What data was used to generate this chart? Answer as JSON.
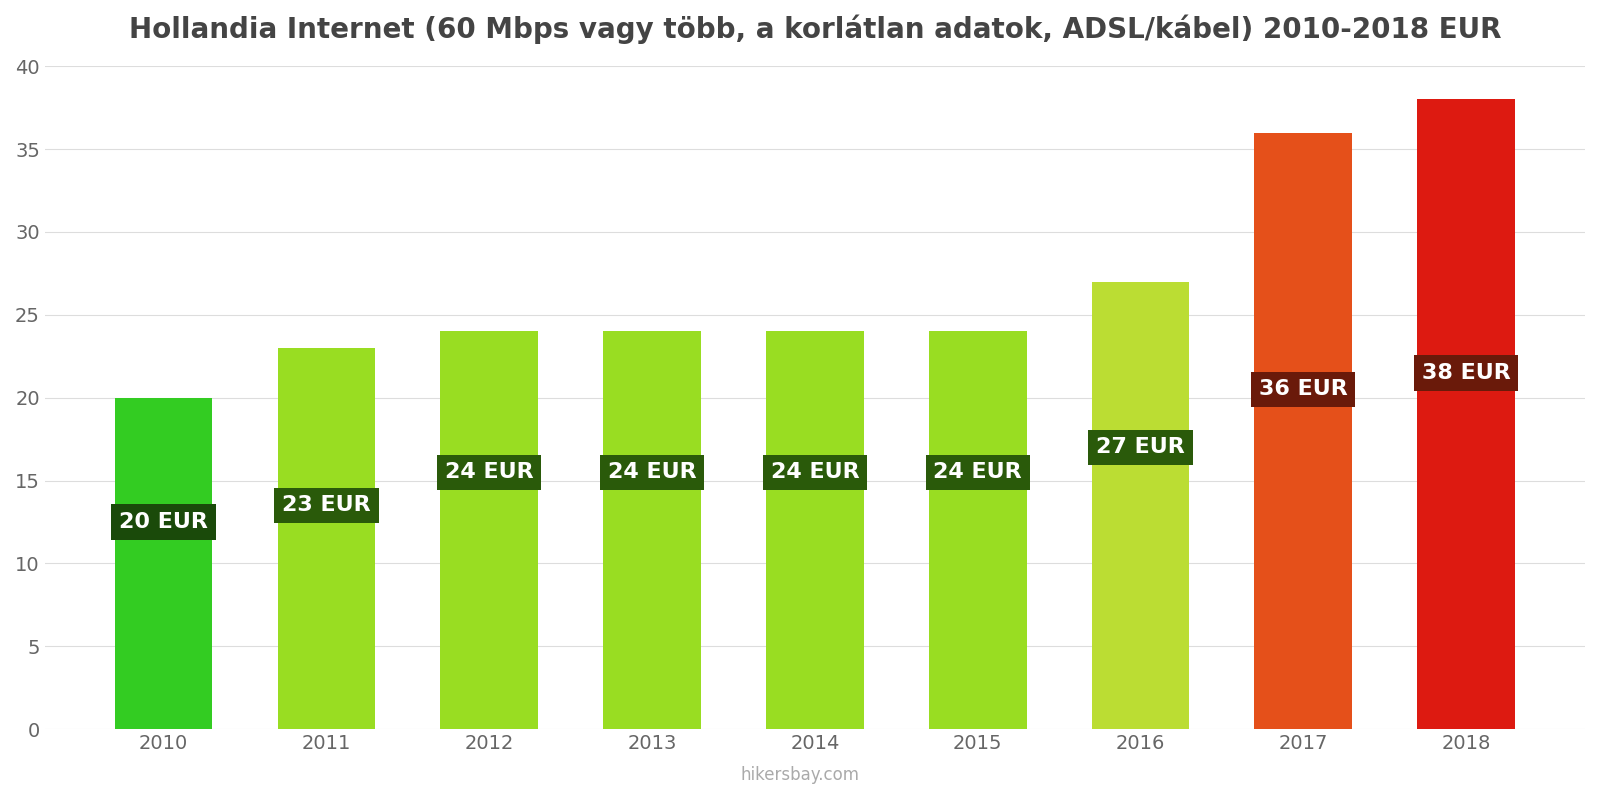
{
  "title": "Hollandia Internet (60 Mbps vagy több, a korlátlan adatok, ADSL/kábel) 2010-2018 EUR",
  "years": [
    2010,
    2011,
    2012,
    2013,
    2014,
    2015,
    2016,
    2017,
    2018
  ],
  "values": [
    20,
    23,
    24,
    24,
    24,
    24,
    27,
    36,
    38
  ],
  "bar_colors": [
    "#33cc22",
    "#99dd22",
    "#99dd22",
    "#99dd22",
    "#99dd22",
    "#99dd22",
    "#bbdd33",
    "#e5501a",
    "#dd1a11"
  ],
  "label_bg_colors": [
    "#1a4a0a",
    "#2a5a0a",
    "#2a5a0a",
    "#2a5a0a",
    "#2a5a0a",
    "#2a5a0a",
    "#2a5a0a",
    "#6a1a0a",
    "#6a1a0a"
  ],
  "labels": [
    "20 EUR",
    "23 EUR",
    "24 EUR",
    "24 EUR",
    "24 EUR",
    "24 EUR",
    "27 EUR",
    "36 EUR",
    "38 EUR"
  ],
  "label_y_positions": [
    12.5,
    13.5,
    15.5,
    15.5,
    15.5,
    15.5,
    17.0,
    20.5,
    21.5
  ],
  "ylim": [
    0,
    40
  ],
  "yticks": [
    0,
    5,
    10,
    15,
    20,
    25,
    30,
    35,
    40
  ],
  "grid_color": "#dddddd",
  "background_color": "#ffffff",
  "title_fontsize": 20,
  "label_fontsize": 16,
  "tick_fontsize": 14,
  "watermark": "hikersbay.com"
}
